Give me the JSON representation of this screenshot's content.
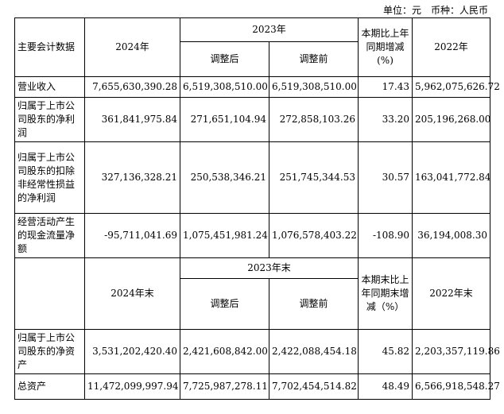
{
  "unit_note": "单位：元　币种：人民币",
  "headers": {
    "main_indicator": "主要会计数据",
    "year_2024": "2024年",
    "year_2023": "2023年",
    "adjusted_after": "调整后",
    "adjusted_before": "调整前",
    "change_pct": "本期比上年同期增减(%)",
    "year_2022": "2022年"
  },
  "income_rows": [
    {
      "label": "营业收入",
      "v2024": "7,655,630,390.28",
      "v2023_after": "6,519,308,510.00",
      "v2023_before": "6,519,308,510.00",
      "change": "17.43",
      "v2022": "5,962,075,626.72"
    },
    {
      "label": "归属于上市公司股东的净利润",
      "v2024": "361,841,975.84",
      "v2023_after": "271,651,104.94",
      "v2023_before": "272,858,103.26",
      "change": "33.20",
      "v2022": "205,196,268.00"
    },
    {
      "label": "归属于上市公司股东的扣除非经常性损益的净利润",
      "v2024": "327,136,328.21",
      "v2023_after": "250,538,346.21",
      "v2023_before": "251,745,344.53",
      "change": "30.57",
      "v2022": "163,041,772.84"
    },
    {
      "label": "经营活动产生的现金流量净额",
      "v2024": "-95,711,041.69",
      "v2023_after": "1,075,451,981.24",
      "v2023_before": "1,076,578,403.22",
      "change": "-108.90",
      "v2022": "36,194,008.30"
    }
  ],
  "headers2": {
    "year_2024_end": "2024年末",
    "year_2023_end": "2023年末",
    "adjusted_after": "调整后",
    "adjusted_before": "调整前",
    "change_pct": "本期末比上年同期末增减（%）",
    "year_2022_end": "2022年末"
  },
  "balance_rows": [
    {
      "label": "归属于上市公司股东的净资产",
      "v2024": "3,531,202,420.40",
      "v2023_after": "2,421,608,842.00",
      "v2023_before": "2,422,088,454.18",
      "change": "45.82",
      "v2022": "2,203,357,119.86"
    },
    {
      "label": "总资产",
      "v2024": "11,472,099,997.94",
      "v2023_after": "7,725,987,278.11",
      "v2023_before": "7,702,454,514.82",
      "change": "48.49",
      "v2022": "6,566,918,548.27"
    }
  ]
}
